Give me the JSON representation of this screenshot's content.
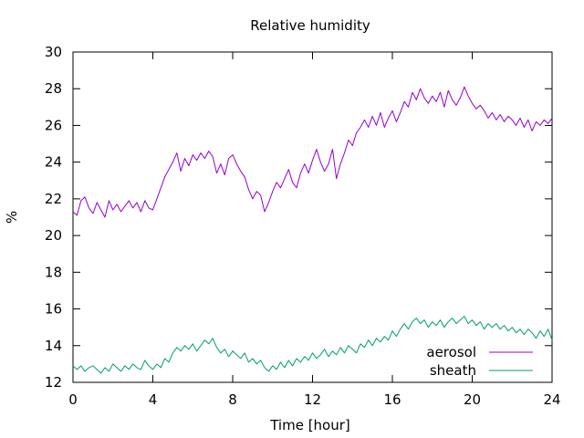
{
  "chart_data": {
    "type": "line",
    "title": "Relative humidity",
    "xlabel": "Time [hour]",
    "ylabel": "%",
    "xlim": [
      0,
      24
    ],
    "ylim": [
      12,
      30
    ],
    "xticks": [
      0,
      4,
      8,
      12,
      16,
      20,
      24
    ],
    "yticks": [
      12,
      14,
      16,
      18,
      20,
      22,
      24,
      26,
      28,
      30
    ],
    "grid": false,
    "legend_position": "bottom-right",
    "series": [
      {
        "name": "aerosol",
        "color": "#9400d3",
        "points": [
          [
            0,
            21.3
          ],
          [
            0.2,
            21.1
          ],
          [
            0.4,
            21.9
          ],
          [
            0.6,
            22.1
          ],
          [
            0.8,
            21.5
          ],
          [
            1.0,
            21.2
          ],
          [
            1.2,
            21.8
          ],
          [
            1.4,
            21.4
          ],
          [
            1.6,
            21.0
          ],
          [
            1.8,
            21.9
          ],
          [
            2.0,
            21.4
          ],
          [
            2.2,
            21.7
          ],
          [
            2.4,
            21.3
          ],
          [
            2.6,
            21.6
          ],
          [
            2.8,
            21.9
          ],
          [
            3.0,
            21.5
          ],
          [
            3.2,
            21.8
          ],
          [
            3.4,
            21.3
          ],
          [
            3.6,
            21.9
          ],
          [
            3.8,
            21.5
          ],
          [
            4.0,
            21.4
          ],
          [
            4.2,
            22.0
          ],
          [
            4.4,
            22.6
          ],
          [
            4.6,
            23.2
          ],
          [
            4.8,
            23.6
          ],
          [
            5.0,
            24.0
          ],
          [
            5.2,
            24.5
          ],
          [
            5.4,
            23.5
          ],
          [
            5.6,
            24.2
          ],
          [
            5.8,
            23.8
          ],
          [
            6.0,
            24.4
          ],
          [
            6.2,
            24.1
          ],
          [
            6.4,
            24.5
          ],
          [
            6.6,
            24.2
          ],
          [
            6.8,
            24.6
          ],
          [
            7.0,
            24.3
          ],
          [
            7.2,
            23.4
          ],
          [
            7.4,
            23.9
          ],
          [
            7.6,
            23.3
          ],
          [
            7.8,
            24.2
          ],
          [
            8.0,
            24.4
          ],
          [
            8.2,
            23.9
          ],
          [
            8.4,
            23.5
          ],
          [
            8.6,
            23.2
          ],
          [
            8.8,
            22.5
          ],
          [
            9.0,
            22.0
          ],
          [
            9.2,
            22.4
          ],
          [
            9.4,
            22.2
          ],
          [
            9.6,
            21.3
          ],
          [
            9.8,
            21.8
          ],
          [
            10.0,
            22.4
          ],
          [
            10.2,
            22.9
          ],
          [
            10.4,
            22.6
          ],
          [
            10.6,
            23.1
          ],
          [
            10.8,
            23.6
          ],
          [
            11.0,
            22.9
          ],
          [
            11.2,
            22.6
          ],
          [
            11.4,
            23.4
          ],
          [
            11.6,
            23.9
          ],
          [
            11.8,
            23.4
          ],
          [
            12.0,
            24.1
          ],
          [
            12.2,
            24.7
          ],
          [
            12.4,
            24.0
          ],
          [
            12.6,
            23.5
          ],
          [
            12.8,
            23.9
          ],
          [
            13.0,
            24.7
          ],
          [
            13.2,
            23.1
          ],
          [
            13.4,
            23.9
          ],
          [
            13.6,
            24.5
          ],
          [
            13.8,
            25.2
          ],
          [
            14.0,
            24.9
          ],
          [
            14.2,
            25.6
          ],
          [
            14.4,
            25.9
          ],
          [
            14.6,
            26.3
          ],
          [
            14.8,
            25.9
          ],
          [
            15.0,
            26.5
          ],
          [
            15.2,
            26.0
          ],
          [
            15.4,
            26.7
          ],
          [
            15.6,
            25.9
          ],
          [
            15.8,
            26.4
          ],
          [
            16.0,
            26.8
          ],
          [
            16.2,
            26.2
          ],
          [
            16.4,
            26.7
          ],
          [
            16.6,
            27.3
          ],
          [
            16.8,
            27.0
          ],
          [
            17.0,
            27.8
          ],
          [
            17.2,
            27.4
          ],
          [
            17.4,
            28.0
          ],
          [
            17.6,
            27.5
          ],
          [
            17.8,
            27.2
          ],
          [
            18.0,
            27.6
          ],
          [
            18.2,
            27.3
          ],
          [
            18.4,
            27.8
          ],
          [
            18.6,
            27.0
          ],
          [
            18.8,
            27.9
          ],
          [
            19.0,
            27.4
          ],
          [
            19.2,
            27.1
          ],
          [
            19.4,
            27.5
          ],
          [
            19.6,
            28.1
          ],
          [
            19.8,
            27.6
          ],
          [
            20.0,
            27.2
          ],
          [
            20.2,
            26.9
          ],
          [
            20.4,
            27.1
          ],
          [
            20.6,
            26.8
          ],
          [
            20.8,
            26.4
          ],
          [
            21.0,
            26.7
          ],
          [
            21.2,
            26.3
          ],
          [
            21.4,
            26.6
          ],
          [
            21.6,
            26.2
          ],
          [
            21.8,
            26.5
          ],
          [
            22.0,
            26.3
          ],
          [
            22.2,
            26.0
          ],
          [
            22.4,
            26.4
          ],
          [
            22.6,
            25.9
          ],
          [
            22.8,
            26.3
          ],
          [
            23.0,
            25.7
          ],
          [
            23.2,
            26.2
          ],
          [
            23.4,
            26.0
          ],
          [
            23.6,
            26.3
          ],
          [
            23.8,
            26.1
          ],
          [
            24.0,
            26.4
          ]
        ]
      },
      {
        "name": "sheath",
        "color": "#009e73",
        "points": [
          [
            0,
            12.9
          ],
          [
            0.2,
            12.7
          ],
          [
            0.4,
            12.9
          ],
          [
            0.6,
            12.6
          ],
          [
            0.8,
            12.8
          ],
          [
            1.0,
            12.9
          ],
          [
            1.2,
            12.7
          ],
          [
            1.4,
            12.5
          ],
          [
            1.6,
            12.8
          ],
          [
            1.8,
            12.6
          ],
          [
            2.0,
            13.0
          ],
          [
            2.2,
            12.8
          ],
          [
            2.4,
            12.6
          ],
          [
            2.6,
            12.9
          ],
          [
            2.8,
            12.7
          ],
          [
            3.0,
            13.0
          ],
          [
            3.2,
            12.8
          ],
          [
            3.4,
            12.7
          ],
          [
            3.6,
            13.2
          ],
          [
            3.8,
            12.9
          ],
          [
            4.0,
            12.7
          ],
          [
            4.2,
            13.0
          ],
          [
            4.4,
            12.8
          ],
          [
            4.6,
            13.3
          ],
          [
            4.8,
            13.1
          ],
          [
            5.0,
            13.6
          ],
          [
            5.2,
            13.9
          ],
          [
            5.4,
            13.7
          ],
          [
            5.6,
            14.0
          ],
          [
            5.8,
            13.8
          ],
          [
            6.0,
            14.1
          ],
          [
            6.2,
            13.7
          ],
          [
            6.4,
            14.0
          ],
          [
            6.6,
            14.3
          ],
          [
            6.8,
            14.1
          ],
          [
            7.0,
            14.4
          ],
          [
            7.2,
            13.9
          ],
          [
            7.4,
            13.6
          ],
          [
            7.6,
            13.8
          ],
          [
            7.8,
            13.4
          ],
          [
            8.0,
            13.7
          ],
          [
            8.2,
            13.5
          ],
          [
            8.4,
            13.3
          ],
          [
            8.6,
            13.6
          ],
          [
            8.8,
            13.1
          ],
          [
            9.0,
            13.3
          ],
          [
            9.2,
            13.0
          ],
          [
            9.4,
            13.2
          ],
          [
            9.6,
            12.8
          ],
          [
            9.8,
            12.6
          ],
          [
            10.0,
            12.9
          ],
          [
            10.2,
            12.7
          ],
          [
            10.4,
            13.1
          ],
          [
            10.6,
            12.8
          ],
          [
            10.8,
            13.2
          ],
          [
            11.0,
            12.9
          ],
          [
            11.2,
            13.3
          ],
          [
            11.4,
            13.1
          ],
          [
            11.6,
            13.4
          ],
          [
            11.8,
            13.2
          ],
          [
            12.0,
            13.6
          ],
          [
            12.2,
            13.3
          ],
          [
            12.4,
            13.5
          ],
          [
            12.6,
            13.8
          ],
          [
            12.8,
            13.4
          ],
          [
            13.0,
            13.7
          ],
          [
            13.2,
            13.5
          ],
          [
            13.4,
            13.9
          ],
          [
            13.6,
            13.6
          ],
          [
            13.8,
            14.0
          ],
          [
            14.0,
            13.8
          ],
          [
            14.2,
            13.6
          ],
          [
            14.4,
            14.1
          ],
          [
            14.6,
            13.9
          ],
          [
            14.8,
            14.3
          ],
          [
            15.0,
            14.0
          ],
          [
            15.2,
            14.4
          ],
          [
            15.4,
            14.2
          ],
          [
            15.6,
            14.5
          ],
          [
            15.8,
            14.3
          ],
          [
            16.0,
            14.8
          ],
          [
            16.2,
            14.5
          ],
          [
            16.4,
            14.9
          ],
          [
            16.6,
            15.2
          ],
          [
            16.8,
            14.9
          ],
          [
            17.0,
            15.3
          ],
          [
            17.2,
            15.5
          ],
          [
            17.4,
            15.2
          ],
          [
            17.6,
            15.4
          ],
          [
            17.8,
            15.0
          ],
          [
            18.0,
            15.3
          ],
          [
            18.2,
            15.1
          ],
          [
            18.4,
            15.4
          ],
          [
            18.6,
            15.0
          ],
          [
            18.8,
            15.3
          ],
          [
            19.0,
            15.5
          ],
          [
            19.2,
            15.2
          ],
          [
            19.4,
            15.4
          ],
          [
            19.6,
            15.6
          ],
          [
            19.8,
            15.2
          ],
          [
            20.0,
            15.4
          ],
          [
            20.2,
            15.1
          ],
          [
            20.4,
            15.3
          ],
          [
            20.6,
            14.9
          ],
          [
            20.8,
            15.2
          ],
          [
            21.0,
            15.0
          ],
          [
            21.2,
            15.2
          ],
          [
            21.4,
            14.9
          ],
          [
            21.6,
            15.1
          ],
          [
            21.8,
            14.8
          ],
          [
            22.0,
            15.0
          ],
          [
            22.2,
            14.7
          ],
          [
            22.4,
            14.9
          ],
          [
            22.6,
            14.6
          ],
          [
            22.8,
            14.9
          ],
          [
            23.0,
            14.7
          ],
          [
            23.2,
            14.4
          ],
          [
            23.4,
            14.8
          ],
          [
            23.6,
            14.5
          ],
          [
            23.8,
            14.9
          ],
          [
            24.0,
            14.3
          ]
        ]
      }
    ]
  }
}
